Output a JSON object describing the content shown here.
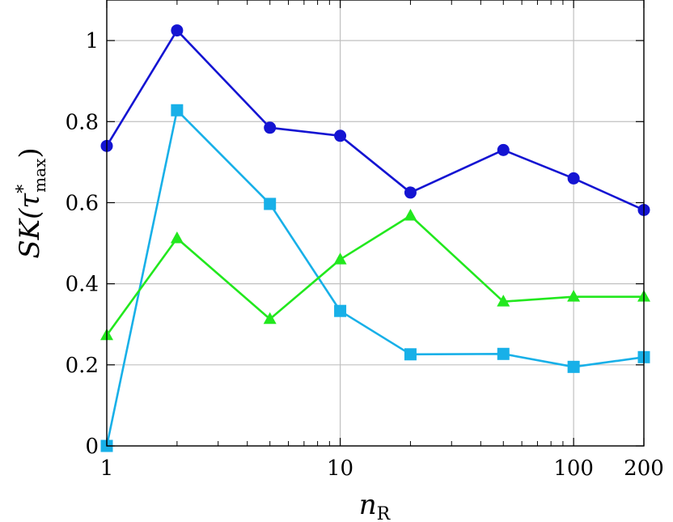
{
  "chart_data": {
    "type": "line",
    "title": "",
    "xlabel": "n",
    "xlabel_sub": "R",
    "ylabel": "SK(τ",
    "ylabel_sup": "*",
    "ylabel_sub": "max",
    "ylabel_close": ")",
    "x_scale": "log",
    "xlim": [
      1,
      200
    ],
    "ylim": [
      0,
      1.1
    ],
    "x_ticks": [
      1,
      10,
      100,
      200
    ],
    "x_tick_labels": [
      "1",
      "10",
      "100",
      "200"
    ],
    "y_ticks": [
      0,
      0.2,
      0.4,
      0.6,
      0.8,
      1
    ],
    "y_tick_labels": [
      "0",
      "0.2",
      "0.4",
      "0.6",
      "0.8",
      "1"
    ],
    "grid": true,
    "legend": "none",
    "x": [
      1,
      2,
      5,
      10,
      20,
      50,
      100,
      200
    ],
    "series": [
      {
        "color": "#1414d2",
        "marker": "circle",
        "values": [
          0.74,
          1.025,
          0.785,
          0.765,
          0.625,
          0.73,
          0.66,
          0.582
        ]
      },
      {
        "color": "#18b0e8",
        "marker": "square",
        "values": [
          0.0,
          0.828,
          0.597,
          0.333,
          0.226,
          0.227,
          0.195,
          0.219
        ]
      },
      {
        "color": "#22e81e",
        "marker": "triangle",
        "values": [
          0.273,
          0.512,
          0.313,
          0.46,
          0.568,
          0.356,
          0.368,
          0.368
        ]
      }
    ]
  }
}
